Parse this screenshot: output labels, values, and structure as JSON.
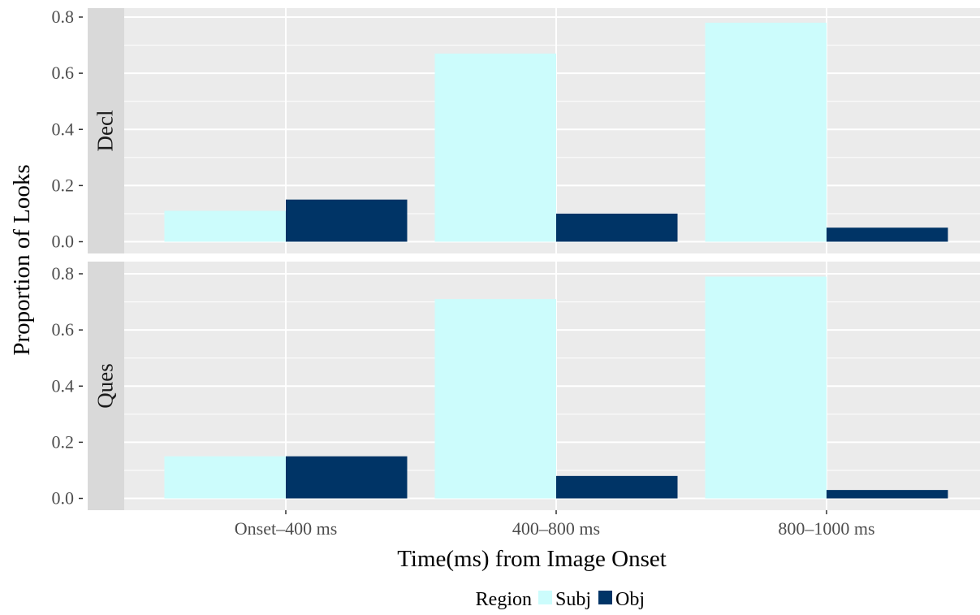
{
  "chart_data": {
    "type": "bar",
    "layout": "faceted-rows",
    "xlabel": "Time(ms) from Image Onset",
    "ylabel": "Proportion of Looks",
    "categories": [
      "Onset–400 ms",
      "400–800 ms",
      "800–1000 ms"
    ],
    "ylim": [
      0,
      0.8
    ],
    "yticks": [
      "0.0",
      "0.2",
      "0.4",
      "0.6",
      "0.8"
    ],
    "grid": true,
    "legend": {
      "title": "Region",
      "placement": "bottom",
      "items": [
        {
          "name": "Subj",
          "color": "#ccfcfc"
        },
        {
          "name": "Obj",
          "color": "#003466"
        }
      ]
    },
    "facets": [
      {
        "label": "Decl",
        "series": [
          {
            "name": "Subj",
            "values": [
              0.11,
              0.67,
              0.78
            ]
          },
          {
            "name": "Obj",
            "values": [
              0.15,
              0.1,
              0.05
            ]
          }
        ]
      },
      {
        "label": "Ques",
        "series": [
          {
            "name": "Subj",
            "values": [
              0.15,
              0.71,
              0.79
            ]
          },
          {
            "name": "Obj",
            "values": [
              0.15,
              0.08,
              0.03
            ]
          }
        ]
      }
    ],
    "colors": {
      "panel_background": "#ebebeb",
      "grid": "#ffffff",
      "strip_background": "#d9d9d9",
      "axis_text": "#4d4d4d"
    }
  }
}
